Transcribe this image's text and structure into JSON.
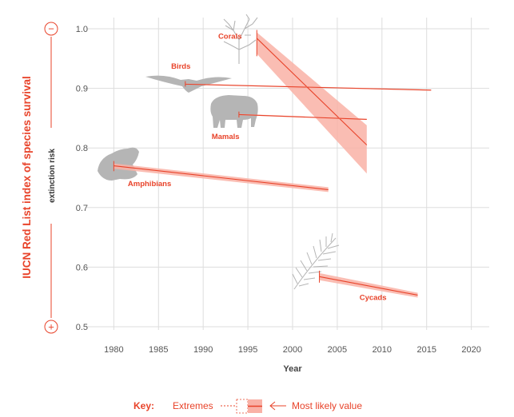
{
  "chart_data": {
    "type": "line",
    "title": "",
    "ylabel": "IUCN Red List index of species survival",
    "ylabel_secondary": "extinction risk",
    "xlabel": "Year",
    "xlim": [
      1978,
      2022
    ],
    "ylim": [
      0.5,
      1.0
    ],
    "x_ticks": [
      1980,
      1985,
      1990,
      1995,
      2000,
      2005,
      2010,
      2015,
      2020
    ],
    "y_ticks": [
      0.5,
      0.6,
      0.7,
      0.8,
      0.9,
      1.0
    ],
    "y_tick_labels": [
      "0.5",
      "0.6",
      "0.7",
      "0.8",
      "0.9",
      "1.0"
    ],
    "axis_end_markers": {
      "top": "−",
      "bottom": "+"
    },
    "series": [
      {
        "name": "Corals",
        "x": [
          1996,
          2008.3
        ],
        "y": [
          0.984,
          0.805
        ],
        "lower": [
          0.958,
          0.757
        ],
        "upper": [
          0.994,
          0.838
        ],
        "label_at": [
          1993,
          0.983
        ]
      },
      {
        "name": "Birds",
        "x": [
          1988,
          2015.5
        ],
        "y": [
          0.907,
          0.897
        ],
        "lower": [
          0.907,
          0.896
        ],
        "upper": [
          0.908,
          0.898
        ],
        "label_at": [
          1987.5,
          0.933
        ]
      },
      {
        "name": "Mamals",
        "x": [
          1994,
          2008.3
        ],
        "y": [
          0.856,
          0.848
        ],
        "lower": [
          0.855,
          0.847
        ],
        "upper": [
          0.857,
          0.849
        ],
        "label_at": [
          1992.5,
          0.815
        ]
      },
      {
        "name": "Amphibians",
        "x": [
          1980,
          2004
        ],
        "y": [
          0.77,
          0.73
        ],
        "lower": [
          0.765,
          0.726
        ],
        "upper": [
          0.774,
          0.734
        ],
        "label_at": [
          1984,
          0.736
        ]
      },
      {
        "name": "Cycads",
        "x": [
          2003,
          2014
        ],
        "y": [
          0.584,
          0.553
        ],
        "lower": [
          0.578,
          0.549
        ],
        "upper": [
          0.59,
          0.557
        ],
        "label_at": [
          2009,
          0.545
        ]
      }
    ],
    "key": {
      "title": "Key:",
      "extremes": "Extremes",
      "most_likely": "Most likely value"
    },
    "colors": {
      "line": "#e8432a",
      "band": "#f9b1a6",
      "grid": "#dddddd",
      "silhouette": "#b5b5b5",
      "accent": "#e8432a"
    }
  }
}
